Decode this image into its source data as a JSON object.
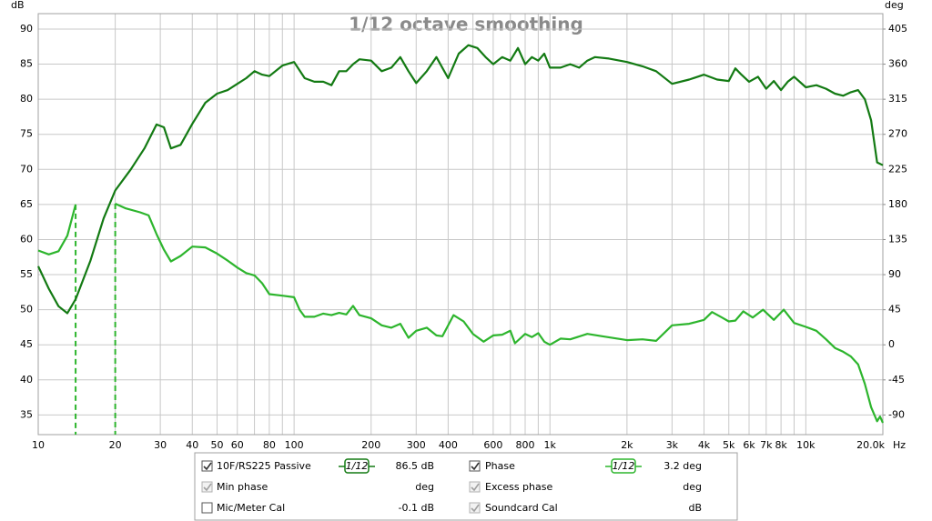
{
  "chart_data": {
    "type": "line",
    "title": "1/12 octave smoothing",
    "ylabel": "dB",
    "y2label": "deg",
    "xlabel": "Hz",
    "log_x": true,
    "grid": true,
    "xlim": [
      10,
      20000
    ],
    "xticks": [
      10,
      20,
      30,
      40,
      50,
      60,
      80,
      100,
      200,
      300,
      400,
      600,
      800,
      {
        "value": 1000,
        "label": "1k"
      },
      {
        "value": 2000,
        "label": "2k"
      },
      {
        "value": 3000,
        "label": "3k"
      },
      {
        "value": 4000,
        "label": "4k"
      },
      {
        "value": 5000,
        "label": "5k"
      },
      {
        "value": 6000,
        "label": "6k"
      },
      {
        "value": 7000,
        "label": "7k"
      },
      {
        "value": 8000,
        "label": "8k"
      },
      {
        "value": 10000,
        "label": "10k"
      },
      {
        "value": 20000,
        "label": "20.0k"
      }
    ],
    "xminorticks": [
      70,
      90,
      500,
      700,
      900,
      9000
    ],
    "ylim": [
      32.2,
      92.2
    ],
    "yticks": [
      35,
      40,
      45,
      50,
      55,
      60,
      65,
      70,
      75,
      80,
      85,
      90
    ],
    "y2lim": [
      -115.2,
      424.8
    ],
    "y2ticks": [
      -90,
      -45,
      0,
      45,
      90,
      135,
      180,
      225,
      270,
      315,
      360,
      405
    ],
    "series": [
      {
        "name": "10F/RS225 Passive",
        "color": "#137a13",
        "x": [
          10,
          11,
          12,
          13,
          14,
          16,
          18,
          20,
          23,
          26,
          29,
          31,
          33,
          36,
          40,
          45,
          50,
          55,
          60,
          65,
          70,
          75,
          80,
          90,
          100,
          110,
          120,
          130,
          140,
          150,
          160,
          170,
          180,
          200,
          220,
          240,
          260,
          280,
          300,
          330,
          360,
          400,
          440,
          480,
          520,
          560,
          600,
          650,
          700,
          750,
          800,
          850,
          900,
          950,
          1000,
          1100,
          1200,
          1300,
          1400,
          1500,
          1700,
          2000,
          2300,
          2600,
          3000,
          3500,
          4000,
          4500,
          5000,
          5300,
          5600,
          6000,
          6500,
          7000,
          7500,
          8000,
          8500,
          9000,
          10000,
          11000,
          12000,
          13000,
          14000,
          15000,
          16000,
          17000,
          18000,
          19000,
          20000
        ],
        "values": [
          56.2,
          53,
          50.5,
          49.5,
          51.5,
          57,
          63,
          67,
          70,
          73,
          76.4,
          76,
          73,
          73.5,
          76.5,
          79.5,
          80.8,
          81.3,
          82.2,
          83,
          84,
          83.5,
          83.3,
          84.8,
          85.3,
          83,
          82.5,
          82.5,
          82,
          84,
          84,
          85,
          85.7,
          85.5,
          84,
          84.5,
          86,
          84,
          82.3,
          84,
          86,
          83,
          86.5,
          87.7,
          87.3,
          86,
          85,
          86,
          85.5,
          87.3,
          85,
          86,
          85.5,
          86.5,
          84.5,
          84.5,
          85,
          84.5,
          85.5,
          86,
          85.8,
          85.3,
          84.7,
          84,
          82.2,
          82.8,
          83.5,
          82.8,
          82.6,
          84.4,
          83.5,
          82.5,
          83.2,
          81.5,
          82.6,
          81.3,
          82.5,
          83.2,
          81.7,
          82,
          81.5,
          80.8,
          80.5,
          81,
          81.3,
          80,
          77,
          71,
          70.6
        ]
      },
      {
        "name": "Phase",
        "color": "#2db52d",
        "axis": "y2",
        "x": [
          10,
          11,
          12,
          13,
          14,
          17,
          20,
          22,
          25,
          27,
          29,
          31,
          33,
          36,
          40,
          45,
          50,
          55,
          60,
          65,
          70,
          75,
          80,
          90,
          100,
          105,
          110,
          120,
          130,
          140,
          150,
          160,
          170,
          180,
          200,
          220,
          240,
          260,
          280,
          300,
          330,
          360,
          380,
          420,
          460,
          500,
          550,
          600,
          650,
          700,
          730,
          800,
          850,
          900,
          950,
          1000,
          1100,
          1200,
          1400,
          1600,
          2000,
          2300,
          2600,
          3000,
          3500,
          4000,
          4300,
          4700,
          5000,
          5300,
          5700,
          6200,
          6800,
          7500,
          8200,
          9000,
          10000,
          11000,
          12000,
          13000,
          14000,
          15000,
          16000,
          17000,
          18000,
          19000,
          19500,
          20000
        ],
        "values": [
          121,
          116,
          120,
          140,
          180,
          null,
          181,
          175,
          170,
          166,
          142,
          122,
          107,
          114,
          126,
          125,
          117,
          108,
          99,
          92,
          89,
          79,
          65,
          63,
          61,
          45,
          36,
          36,
          40,
          38,
          41,
          39,
          50,
          38,
          34,
          25,
          22,
          27,
          9,
          18,
          22,
          12,
          11,
          38,
          30,
          14,
          4,
          12,
          13,
          18,
          2,
          14,
          10,
          15,
          4,
          0,
          8,
          7,
          14,
          11,
          6,
          7,
          5,
          25,
          27,
          32,
          42,
          35,
          30,
          31,
          43,
          35,
          45,
          32,
          45,
          28,
          23,
          18,
          7,
          -4,
          -9,
          -15,
          -25,
          -50,
          -80,
          -98,
          -92,
          -100
        ]
      }
    ]
  },
  "legend_panel": {
    "rows": [
      [
        {
          "checked": true,
          "enabled": true,
          "smoothing": "1/12",
          "readout": "86.5 dB"
        },
        {
          "checked": true,
          "enabled": true,
          "smoothing": "1/12",
          "readout": "3.2 deg"
        }
      ],
      [
        {
          "label": "Min phase",
          "checked": true,
          "enabled": false,
          "readout": "deg"
        },
        {
          "label": "Excess phase",
          "checked": true,
          "enabled": false,
          "readout": "deg"
        }
      ],
      [
        {
          "label": "Mic/Meter Cal",
          "checked": false,
          "enabled": true,
          "color": "#000000",
          "readout": "-0.1 dB"
        },
        {
          "label": "Soundcard Cal",
          "checked": true,
          "enabled": false,
          "readout": "dB"
        }
      ]
    ]
  }
}
